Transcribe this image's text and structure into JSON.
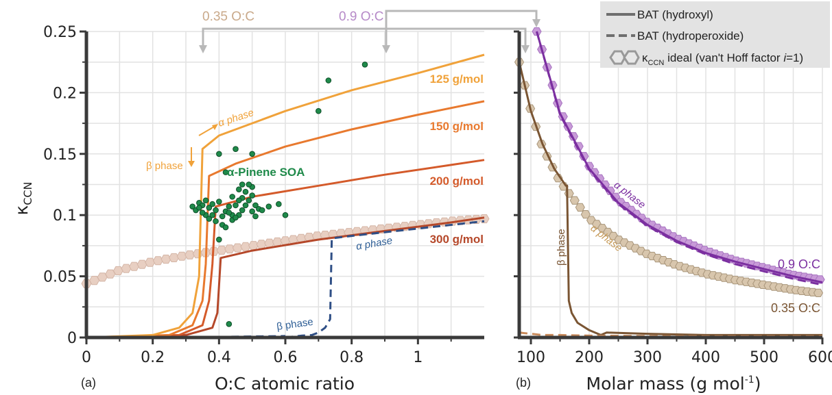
{
  "figure": {
    "panel_a_letter": "(a)",
    "panel_b_letter": "(b)",
    "oc_arrow_low": "0.35 O:C",
    "oc_arrow_high": "0.9 O:C",
    "colors": {
      "mw125": "#f0a23a",
      "mw150": "#e8792e",
      "mw200": "#d45a2a",
      "mw300": "#b5482a",
      "hydroperoxide": "#2f4f86",
      "ideal_a": "#e8cfc2",
      "pinene": "#1f8a4a",
      "oc035": "#7a5533",
      "oc035_ideal": "#d8c6ad",
      "oc09": "#7b2fa0",
      "oc09_ideal": "#c89ad8",
      "annot_low": "#c9a98a",
      "annot_high": "#b68ac8",
      "connector": "#b8b8b8"
    }
  },
  "legend": {
    "items": [
      {
        "label": "BAT (hydroxyl)",
        "style": "solid"
      },
      {
        "label": "BAT (hydroperoxide)",
        "style": "dashed"
      },
      {
        "label_main": "κ",
        "label_sub": "CCN",
        "label_rest": " ideal (van't Hoff factor ",
        "label_i": "i",
        "label_end": "=1)",
        "style": "hexagon"
      }
    ]
  },
  "chart_data": [
    {
      "type": "line",
      "panel": "(a)",
      "xlabel": "O:C atomic ratio",
      "ylabel_main": "κ",
      "ylabel_sub": "CCN",
      "xlim": [
        0,
        1.2
      ],
      "ylim": [
        0,
        0.25
      ],
      "x_ticks": [
        "0",
        "0.2",
        "0.4",
        "0.6",
        "0.8",
        "1"
      ],
      "y_ticks": [
        "0",
        "0.05",
        "0.1",
        "0.15",
        "0.2",
        "0.25"
      ],
      "grid": true,
      "annotations": {
        "mw125": "125 g/mol",
        "mw150": "150 g/mol",
        "mw200": "200 g/mol",
        "mw300": "300 g/mol",
        "pinene": "α-Pinene SOA",
        "alpha_top": "α phase",
        "beta_top": "β phase",
        "alpha_blue": "α phase",
        "beta_blue": "β phase"
      },
      "series": [
        {
          "key": "mw125",
          "x": [
            0.0,
            0.2,
            0.28,
            0.32,
            0.34,
            0.35,
            0.4,
            0.6,
            0.8,
            1.0,
            1.2
          ],
          "y": [
            0.0,
            0.002,
            0.008,
            0.02,
            0.05,
            0.154,
            0.165,
            0.185,
            0.202,
            0.216,
            0.231
          ]
        },
        {
          "key": "mw150",
          "x": [
            0.0,
            0.25,
            0.32,
            0.35,
            0.36,
            0.37,
            0.45,
            0.6,
            0.8,
            1.0,
            1.2
          ],
          "y": [
            0.0,
            0.002,
            0.01,
            0.03,
            0.06,
            0.132,
            0.142,
            0.156,
            0.17,
            0.182,
            0.193
          ]
        },
        {
          "key": "mw200",
          "x": [
            0.0,
            0.28,
            0.35,
            0.37,
            0.38,
            0.39,
            0.5,
            0.7,
            0.9,
            1.1,
            1.2
          ],
          "y": [
            0.0,
            0.002,
            0.01,
            0.03,
            0.06,
            0.107,
            0.115,
            0.124,
            0.133,
            0.141,
            0.145
          ]
        },
        {
          "key": "mw300",
          "x": [
            0.0,
            0.3,
            0.38,
            0.395,
            0.405,
            0.5,
            0.7,
            0.9,
            1.1,
            1.2
          ],
          "y": [
            0.0,
            0.002,
            0.008,
            0.02,
            0.065,
            0.071,
            0.08,
            0.087,
            0.094,
            0.098
          ]
        },
        {
          "key": "hydroperoxide",
          "x": [
            0.6,
            0.65,
            0.68,
            0.7,
            0.72,
            0.735,
            0.74,
            0.8,
            0.9,
            1.0,
            1.1,
            1.2
          ],
          "y": [
            0.0,
            0.0015,
            0.002,
            0.004,
            0.008,
            0.015,
            0.081,
            0.083,
            0.086,
            0.089,
            0.092,
            0.095
          ]
        },
        {
          "key": "ideal",
          "x": [
            0.0,
            0.1,
            0.2,
            0.3,
            0.4,
            0.5,
            0.6,
            0.7,
            0.8,
            0.9,
            1.0,
            1.1,
            1.2
          ],
          "y": [
            0.044,
            0.055,
            0.062,
            0.067,
            0.071,
            0.075,
            0.079,
            0.083,
            0.086,
            0.089,
            0.092,
            0.095,
            0.097
          ]
        }
      ],
      "pinene_points": [
        [
          0.43,
          0.011
        ],
        [
          0.32,
          0.107
        ],
        [
          0.33,
          0.104
        ],
        [
          0.34,
          0.11
        ],
        [
          0.35,
          0.108
        ],
        [
          0.36,
          0.112
        ],
        [
          0.37,
          0.106
        ],
        [
          0.38,
          0.109
        ],
        [
          0.39,
          0.104
        ],
        [
          0.4,
          0.111
        ],
        [
          0.41,
          0.099
        ],
        [
          0.42,
          0.103
        ],
        [
          0.43,
          0.107
        ],
        [
          0.44,
          0.115
        ],
        [
          0.45,
          0.108
        ],
        [
          0.46,
          0.121
        ],
        [
          0.47,
          0.125
        ],
        [
          0.48,
          0.119
        ],
        [
          0.49,
          0.112
        ],
        [
          0.5,
          0.103
        ],
        [
          0.51,
          0.108
        ],
        [
          0.52,
          0.105
        ],
        [
          0.55,
          0.107
        ],
        [
          0.58,
          0.109
        ],
        [
          0.6,
          0.1
        ],
        [
          0.36,
          0.1
        ],
        [
          0.37,
          0.097
        ],
        [
          0.39,
          0.095
        ],
        [
          0.41,
          0.092
        ],
        [
          0.42,
          0.09
        ],
        [
          0.4,
          0.08
        ],
        [
          0.44,
          0.096
        ],
        [
          0.46,
          0.1
        ],
        [
          0.48,
          0.108
        ],
        [
          0.5,
          0.116
        ],
        [
          0.5,
          0.123
        ],
        [
          0.49,
          0.125
        ],
        [
          0.47,
          0.114
        ],
        [
          0.46,
          0.112
        ],
        [
          0.44,
          0.1
        ],
        [
          0.42,
          0.135
        ],
        [
          0.45,
          0.154
        ],
        [
          0.4,
          0.15
        ],
        [
          0.5,
          0.15
        ],
        [
          0.7,
          0.185
        ],
        [
          0.73,
          0.21
        ],
        [
          0.84,
          0.223
        ],
        [
          0.53,
          0.104
        ],
        [
          0.38,
          0.1
        ],
        [
          0.45,
          0.098
        ],
        [
          0.43,
          0.102
        ],
        [
          0.47,
          0.104
        ],
        [
          0.51,
          0.099
        ],
        [
          0.35,
          0.102
        ],
        [
          0.34,
          0.106
        ]
      ]
    },
    {
      "type": "line",
      "panel": "(b)",
      "xlabel_main": "Molar mass (g mol",
      "xlabel_sup": "-1",
      "xlabel_end": ")",
      "xlim": [
        80,
        600
      ],
      "ylim": [
        0,
        0.25
      ],
      "x_ticks": [
        "100",
        "200",
        "300",
        "400",
        "500",
        "600"
      ],
      "grid": true,
      "annotations": {
        "oc09": "0.9 O:C",
        "oc035": "0.35 O:C",
        "alpha_purple": "α phase",
        "alpha_brown": "α phase",
        "beta_brown": "β phase"
      },
      "series": [
        {
          "key": "oc09_ideal",
          "x": [
            110,
            150,
            200,
            250,
            300,
            350,
            400,
            450,
            500,
            550,
            600
          ],
          "y": [
            0.25,
            0.185,
            0.14,
            0.112,
            0.094,
            0.081,
            0.071,
            0.063,
            0.057,
            0.051,
            0.047
          ]
        },
        {
          "key": "oc09_hydroxyl",
          "x": [
            110,
            150,
            200,
            250,
            300,
            350,
            400,
            450,
            500,
            550,
            600
          ],
          "y": [
            0.25,
            0.183,
            0.138,
            0.11,
            0.092,
            0.079,
            0.069,
            0.062,
            0.056,
            0.05,
            0.045
          ]
        },
        {
          "key": "oc09_hydroperoxide",
          "x": [
            110,
            150,
            200,
            250,
            300,
            350,
            400,
            450,
            500,
            550,
            600
          ],
          "y": [
            0.25,
            0.182,
            0.137,
            0.109,
            0.091,
            0.078,
            0.068,
            0.06,
            0.054,
            0.048,
            0.043
          ]
        },
        {
          "key": "oc035_ideal",
          "x": [
            80,
            100,
            120,
            150,
            200,
            250,
            300,
            350,
            400,
            450,
            500,
            550,
            600
          ],
          "y": [
            0.225,
            0.185,
            0.155,
            0.127,
            0.097,
            0.08,
            0.068,
            0.059,
            0.052,
            0.047,
            0.043,
            0.039,
            0.036
          ]
        },
        {
          "key": "oc035_hydroxyl",
          "x": [
            80,
            100,
            120,
            140,
            160,
            162,
            165,
            170,
            180,
            200,
            220,
            230,
            300,
            400,
            500,
            600
          ],
          "y": [
            0.225,
            0.185,
            0.158,
            0.138,
            0.124,
            0.124,
            0.03,
            0.02,
            0.012,
            0.006,
            0.002,
            0.004,
            0.003,
            0.002,
            0.002,
            0.002
          ]
        },
        {
          "key": "oc035_hydroperoxide",
          "x": [
            80,
            100,
            120,
            150,
            200,
            300,
            400,
            500,
            600
          ],
          "y": [
            0.004,
            0.003,
            0.002,
            0.002,
            0.0015,
            0.0012,
            0.001,
            0.001,
            0.001
          ]
        }
      ]
    }
  ]
}
